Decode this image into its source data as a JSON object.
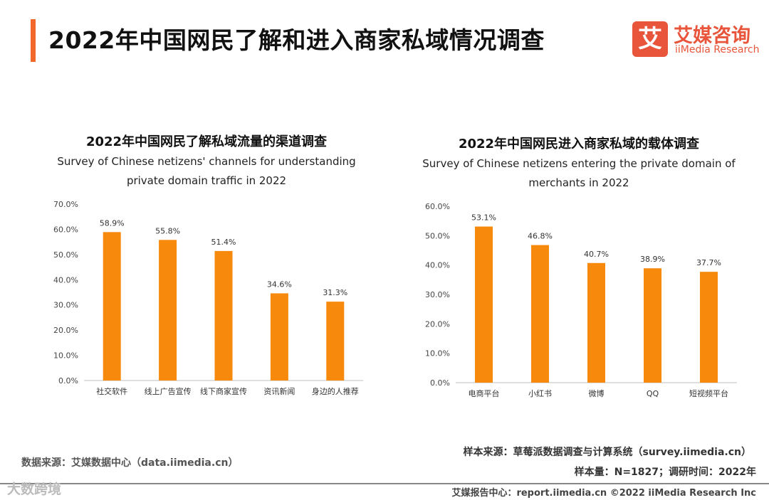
{
  "header": {
    "title": "2022年中国网民了解和进入商家私域情况调查",
    "logo_mark": "艾",
    "logo_cn": "艾媒咨询",
    "logo_en": "iiMedia Research"
  },
  "colors": {
    "bar": "#f78a0c",
    "accent": "#f2672a",
    "axis": "#bfbfbf"
  },
  "chart_data": [
    {
      "type": "bar",
      "title": "2022年中国网民了解私域流量的渠道调查",
      "subtitle_line1": "Survey of Chinese netizens' channels for understanding",
      "subtitle_line2": "private domain traffic in 2022",
      "categories": [
        "社交软件",
        "线上广告宣传",
        "线下商家宣传",
        "资讯新闻",
        "身边的人推荐"
      ],
      "values": [
        58.9,
        55.8,
        51.4,
        34.6,
        31.3
      ],
      "value_labels": [
        "58.9%",
        "55.8%",
        "51.4%",
        "34.6%",
        "31.3%"
      ],
      "ylim": [
        0,
        70
      ],
      "yticks": [
        0,
        10,
        20,
        30,
        40,
        50,
        60,
        70
      ],
      "ytick_labels": [
        "0.0%",
        "10.0%",
        "20.0%",
        "30.0%",
        "40.0%",
        "50.0%",
        "60.0%",
        "70.0%"
      ],
      "xlabel": "",
      "ylabel": ""
    },
    {
      "type": "bar",
      "title": "2022年中国网民进入商家私域的载体调查",
      "subtitle_line1": "Survey of Chinese netizens entering the private domain of",
      "subtitle_line2": "merchants in 2022",
      "categories": [
        "电商平台",
        "小红书",
        "微博",
        "QQ",
        "短视频平台"
      ],
      "values": [
        53.1,
        46.8,
        40.7,
        38.9,
        37.7
      ],
      "value_labels": [
        "53.1%",
        "46.8%",
        "40.7%",
        "38.9%",
        "37.7%"
      ],
      "ylim": [
        0,
        60
      ],
      "yticks": [
        0,
        10,
        20,
        30,
        40,
        50,
        60
      ],
      "ytick_labels": [
        "0.0%",
        "10.0%",
        "20.0%",
        "30.0%",
        "40.0%",
        "50.0%",
        "60.0%"
      ],
      "xlabel": "",
      "ylabel": ""
    }
  ],
  "footer": {
    "data_source": "数据来源：艾媒数据中心（data.iimedia.cn）",
    "sample_source": "样本来源：草莓派数据调查与计算系统（survey.iimedia.cn）",
    "sample_info": "样本量：N=1827；调研时间：2022年",
    "watermark": "大数跨境",
    "report_center": "艾媒报告中心：report.iimedia.cn   ©2022  iiMedia Research  Inc"
  }
}
